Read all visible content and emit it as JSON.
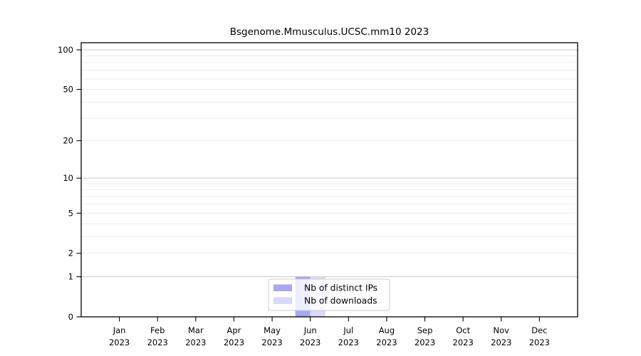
{
  "chart_data": {
    "type": "bar",
    "title": "Bsgenome.Mmusculus.UCSC.mm10 2023",
    "xlabel": "",
    "ylabel": "",
    "yscale": "log1p",
    "ylim": [
      0,
      113
    ],
    "grid": "horizontal",
    "categories": [
      "Jan",
      "Feb",
      "Mar",
      "Apr",
      "May",
      "Jun",
      "Jul",
      "Aug",
      "Sep",
      "Oct",
      "Nov",
      "Dec"
    ],
    "year_label": "2023",
    "yticks": [
      0,
      1,
      2,
      5,
      10,
      20,
      50,
      100
    ],
    "grid_major_values": [
      1,
      10,
      100
    ],
    "grid_minor_values": [
      2,
      3,
      4,
      5,
      6,
      7,
      8,
      9,
      20,
      30,
      40,
      50,
      60,
      70,
      80,
      90
    ],
    "series": [
      {
        "name": "Nb of distinct IPs",
        "color": "#a8a8f0",
        "values": [
          0,
          0,
          0,
          0,
          0,
          1,
          0,
          0,
          0,
          0,
          0,
          0
        ]
      },
      {
        "name": "Nb of downloads",
        "color": "#d9d9f8",
        "values": [
          0,
          0,
          0,
          0,
          0,
          1,
          0,
          0,
          0,
          0,
          0,
          0
        ]
      }
    ],
    "legend": {
      "position": "bottom-center",
      "entries": [
        "Nb of distinct IPs",
        "Nb of downloads"
      ]
    },
    "colors": {
      "axis": "#000000",
      "grid_major": "#c9c9c9",
      "grid_minor": "#ececec",
      "legend_border": "#cccccc",
      "background": "#ffffff"
    }
  }
}
